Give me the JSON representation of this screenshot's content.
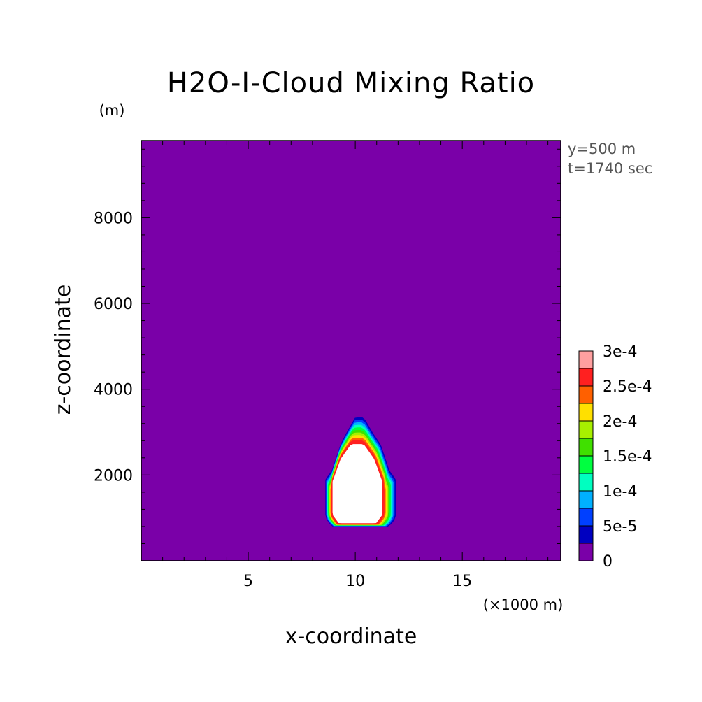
{
  "chart_data": {
    "type": "heatmap",
    "title": "H2O-I-Cloud Mixing Ratio",
    "xlabel": "x-coordinate",
    "ylabel": "z-coordinate",
    "x_unit_label": "(×1000 m)",
    "y_unit_label": "(m)",
    "annotations": [
      "y=500 m",
      "t=1740 sec"
    ],
    "xlim": [
      0,
      19.6
    ],
    "ylim": [
      0,
      9800
    ],
    "x_ticks": [
      5,
      10,
      15
    ],
    "y_ticks": [
      2000,
      4000,
      6000,
      8000
    ],
    "colorbar": {
      "ticks": [
        "0",
        "5e-5",
        "1e-4",
        "1.5e-4",
        "2e-4",
        "2.5e-4",
        "3e-4"
      ],
      "colors": [
        "#7a00a8",
        "#0000c0",
        "#0040ff",
        "#00b0ff",
        "#00ffc0",
        "#00ff40",
        "#40e000",
        "#a8f000",
        "#ffe000",
        "#ff6000",
        "#ff2020",
        "#ffa0a0"
      ]
    },
    "background_color": "#7a00a8",
    "core_color": "#ffffff",
    "cloud": {
      "description_level": "max",
      "outer_contour": [
        [
          8.9,
          800
        ],
        [
          8.6,
          1000
        ],
        [
          8.6,
          1900
        ],
        [
          8.9,
          2100
        ],
        [
          9.3,
          2700
        ],
        [
          9.6,
          3000
        ],
        [
          10.0,
          3350
        ],
        [
          10.4,
          3350
        ],
        [
          10.8,
          3000
        ],
        [
          11.2,
          2700
        ],
        [
          11.6,
          2100
        ],
        [
          11.9,
          1900
        ],
        [
          11.9,
          1000
        ],
        [
          11.6,
          800
        ]
      ],
      "core_contour": [
        [
          9.2,
          850
        ],
        [
          8.9,
          1050
        ],
        [
          8.9,
          1850
        ],
        [
          9.3,
          2400
        ],
        [
          9.8,
          2750
        ],
        [
          10.4,
          2750
        ],
        [
          10.9,
          2400
        ],
        [
          11.3,
          1850
        ],
        [
          11.3,
          1050
        ],
        [
          11.0,
          850
        ]
      ]
    }
  }
}
